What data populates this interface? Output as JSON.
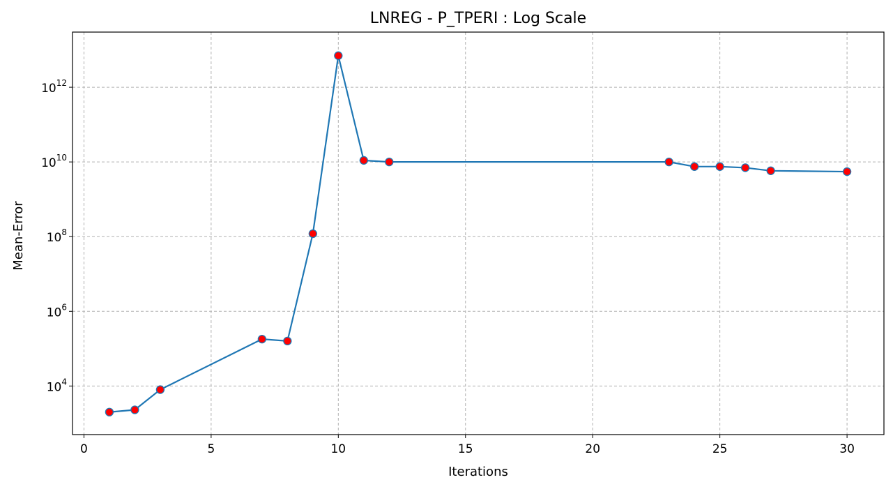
{
  "chart_data": {
    "type": "line",
    "title": "LNREG - P_TPERI : Log Scale",
    "xlabel": "Iterations",
    "ylabel": "Mean-Error",
    "yscale": "log",
    "grid": true,
    "xlim": [
      -0.45,
      31.45
    ],
    "ylim": [
      500,
      30000000000000
    ],
    "x_ticks": [
      0,
      5,
      10,
      15,
      20,
      25,
      30
    ],
    "y_ticks": [
      {
        "value": 10000,
        "base": "10",
        "exp": "4"
      },
      {
        "value": 1000000,
        "base": "10",
        "exp": "6"
      },
      {
        "value": 100000000,
        "base": "10",
        "exp": "8"
      },
      {
        "value": 10000000000,
        "base": "10",
        "exp": "10"
      },
      {
        "value": 1000000000000,
        "base": "10",
        "exp": "12"
      }
    ],
    "series": [
      {
        "line_color": "#1f77b4",
        "marker_color": "#ff0000",
        "marker_edge": "#1f77b4",
        "x": [
          1,
          2,
          3,
          7,
          8,
          9,
          10,
          11,
          12,
          23,
          24,
          25,
          26,
          27,
          30
        ],
        "values": [
          2000,
          2300,
          8000,
          180000,
          160000,
          120000000,
          7000000000000,
          11000000000,
          10000000000,
          10000000000,
          7500000000,
          7500000000,
          7000000000,
          5800000000,
          5500000000
        ]
      }
    ]
  }
}
